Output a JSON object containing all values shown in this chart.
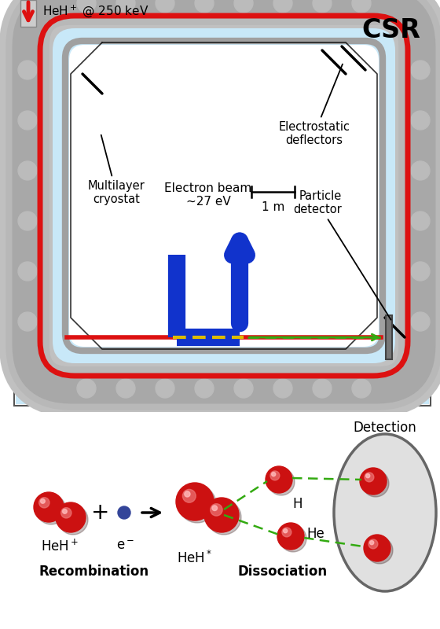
{
  "bg_color": "#ffffff",
  "ring_bg": "#c8e8f8",
  "outer_bg": "#ddeeff",
  "title": "CSR",
  "title_fontsize": 24,
  "heh_label": "HeH$^+$ @ 250 keV",
  "electron_beam_label": "Electron beam\n~27 eV",
  "particle_detector_label": "Particle\ndetector",
  "multilayer_label": "Multilayer\ncryostat",
  "electrostatic_label": "Electrostatic\ndeflectors",
  "scale_label": "1 m",
  "recombination_label": "Recombination",
  "dissociation_label": "Dissociation",
  "detection_label": "Detection",
  "heh_plus_label": "HeH$^+$",
  "eminus_label": "e$^-$",
  "heh_star_label": "HeH$^*$",
  "h_label": "H",
  "he_label": "He",
  "red_beam_color": "#dd1111",
  "blue_beam_color": "#1133cc",
  "green_arrow_color": "#33aa11",
  "gray_cryostat_color": "#aaaaaa",
  "gray_cryostat_dark": "#999999",
  "detector_bar_color": "#777777",
  "bump_color": "#bbbbbb"
}
